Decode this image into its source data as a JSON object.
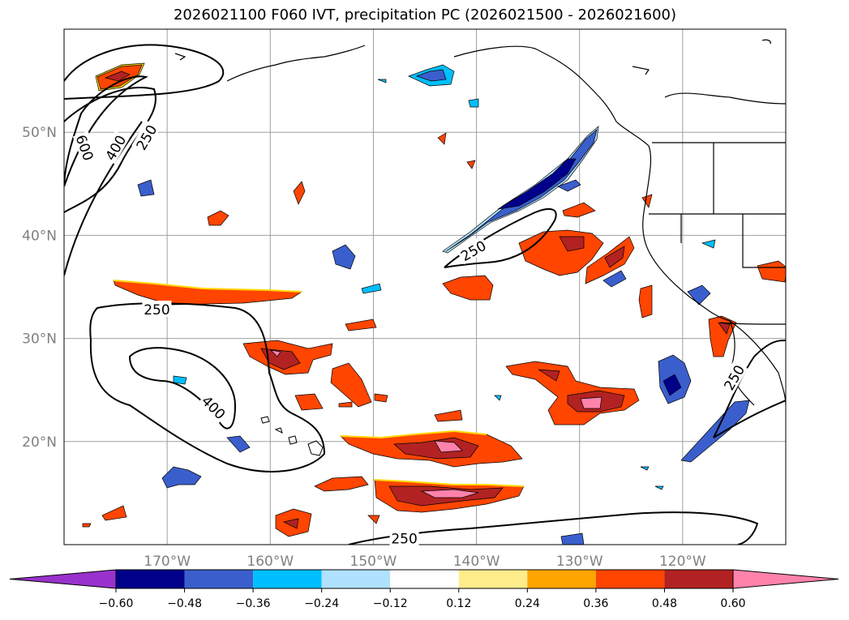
{
  "title": "2026021100 F060 IVT, precipitation PC (2026021500 - 2026021600)",
  "map": {
    "lon_range": [
      -180,
      -110
    ],
    "lat_range": [
      10,
      60
    ],
    "lon_ticks": [
      {
        "value": -170,
        "label": "170°W"
      },
      {
        "value": -160,
        "label": "160°W"
      },
      {
        "value": -150,
        "label": "150°W"
      },
      {
        "value": -140,
        "label": "140°W"
      },
      {
        "value": -130,
        "label": "130°W"
      },
      {
        "value": -120,
        "label": "120°W"
      }
    ],
    "lat_ticks": [
      {
        "value": 50,
        "label": "50°N"
      },
      {
        "value": 40,
        "label": "40°N"
      },
      {
        "value": 30,
        "label": "30°N"
      },
      {
        "value": 20,
        "label": "20°N"
      }
    ],
    "contour_labels": [
      {
        "text": "600",
        "lon": -178,
        "lat": 48.5
      },
      {
        "text": "400",
        "lon": -175,
        "lat": 48.5
      },
      {
        "text": "250",
        "lon": -172,
        "lat": 49.5
      },
      {
        "text": "250",
        "lon": -140.3,
        "lat": 38.5
      },
      {
        "text": "250",
        "lon": -171,
        "lat": 32.8
      },
      {
        "text": "400",
        "lon": -165.5,
        "lat": 23.3
      },
      {
        "text": "250",
        "lon": -147,
        "lat": 10.6
      },
      {
        "text": "250",
        "lon": -115,
        "lat": 26.2
      }
    ]
  },
  "colorbar": {
    "colors": [
      "#9932cc",
      "#00008b",
      "#3a5fcd",
      "#00bfff",
      "#b0e2ff",
      "#ffffff",
      "#ffec8b",
      "#ffa500",
      "#ff4500",
      "#b22222",
      "#ff82ab"
    ],
    "tick_labels": [
      "−0.60",
      "−0.48",
      "−0.36",
      "−0.24",
      "−0.12",
      "0.12",
      "0.24",
      "0.36",
      "0.48",
      "0.60"
    ]
  }
}
